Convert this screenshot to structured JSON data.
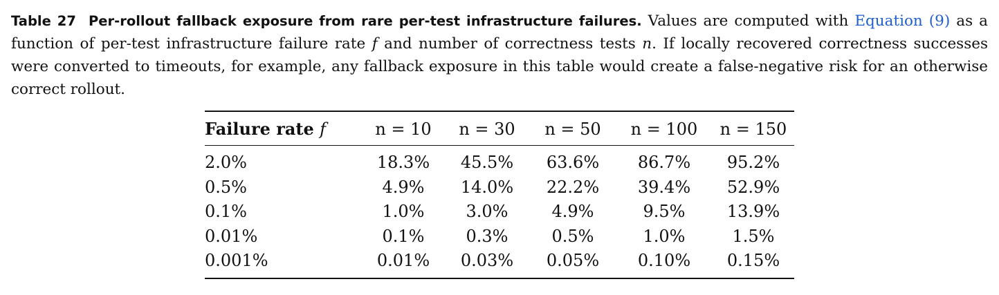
{
  "caption": {
    "label": "Table 27",
    "title": "Per-rollout fallback exposure from rare per-test infrastructure failures.",
    "text_part1": "Values are computed with",
    "link": "Equation (9)",
    "text_part2": "as a function of per-test infrastructure failure rate",
    "var_f": "f",
    "text_part3": "and number of correctness tests",
    "var_n": "n",
    "text_part4": ". If locally recovered correctness successes were converted to timeouts, for example, any fallback exposure in this table would create a false-negative risk for an otherwise correct rollout."
  },
  "table": {
    "header": {
      "rate_label": "Failure rate",
      "rate_var": "f",
      "n_columns": [
        "n = 10",
        "n = 30",
        "n = 50",
        "n = 100",
        "n = 150"
      ]
    },
    "rows": [
      {
        "rate": "2.0%",
        "values": [
          "18.3%",
          "45.5%",
          "63.6%",
          "86.7%",
          "95.2%"
        ]
      },
      {
        "rate": "0.5%",
        "values": [
          "4.9%",
          "14.0%",
          "22.2%",
          "39.4%",
          "52.9%"
        ]
      },
      {
        "rate": "0.1%",
        "values": [
          "1.0%",
          "3.0%",
          "4.9%",
          "9.5%",
          "13.9%"
        ]
      },
      {
        "rate": "0.01%",
        "values": [
          "0.1%",
          "0.3%",
          "0.5%",
          "1.0%",
          "1.5%"
        ]
      },
      {
        "rate": "0.001%",
        "values": [
          "0.01%",
          "0.03%",
          "0.05%",
          "0.10%",
          "0.15%"
        ]
      }
    ]
  },
  "colors": {
    "text": "#111111",
    "link": "#1f5fd0",
    "background": "#ffffff"
  }
}
